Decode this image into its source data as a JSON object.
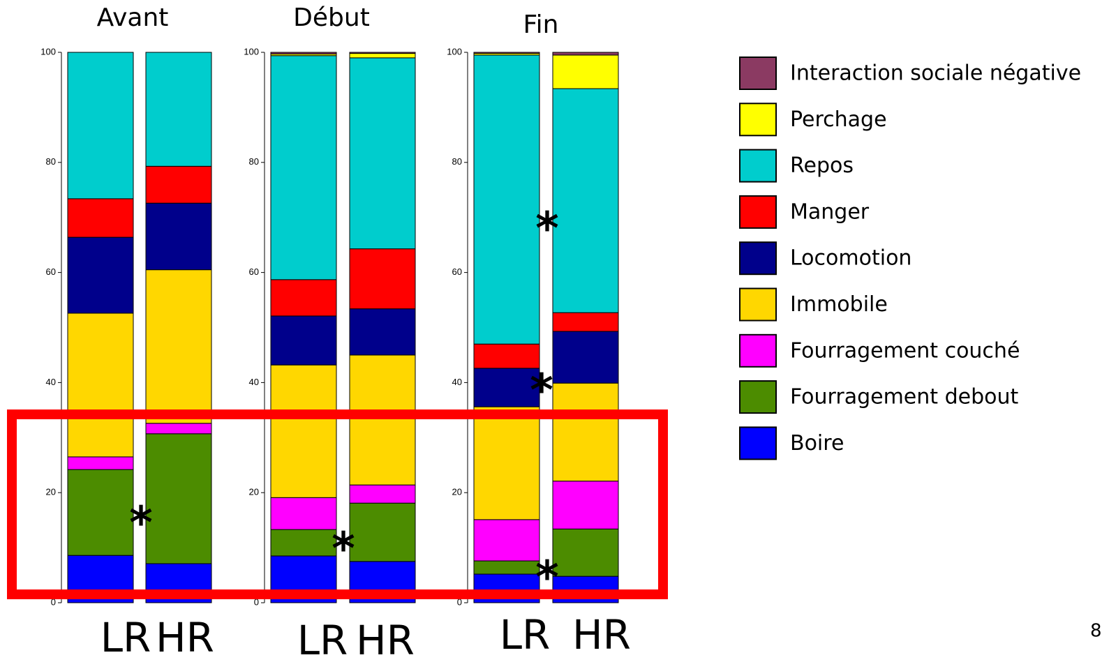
{
  "chart_data": [
    {
      "type": "bar",
      "stacked": true,
      "title": "Avant",
      "categories": [
        "LR",
        "HR"
      ],
      "ylim": [
        0,
        100
      ],
      "yticks": [
        0,
        20,
        40,
        60,
        80,
        100
      ],
      "annotations": [
        "*"
      ],
      "series": [
        {
          "name": "Boire",
          "color": "#0000ff",
          "values": [
            8.6,
            7.1
          ]
        },
        {
          "name": "Fourragement debout",
          "color": "#4c8c00",
          "values": [
            15.6,
            23.6
          ]
        },
        {
          "name": "Fourragement couché",
          "color": "#ff00ff",
          "values": [
            2.3,
            1.9
          ]
        },
        {
          "name": "Immobile",
          "color": "#ffd700",
          "values": [
            26.1,
            27.9
          ]
        },
        {
          "name": "Locomotion",
          "color": "#00008b",
          "values": [
            13.8,
            12.1
          ]
        },
        {
          "name": "Manger",
          "color": "#ff0000",
          "values": [
            7.0,
            6.7
          ]
        },
        {
          "name": "Repos",
          "color": "#00cdcd",
          "values": [
            26.6,
            20.7
          ]
        },
        {
          "name": "Perchage",
          "color": "#ffff00",
          "values": [
            0,
            0
          ]
        },
        {
          "name": "Interaction sociale négative",
          "color": "#8b3a62",
          "values": [
            0,
            0
          ]
        }
      ]
    },
    {
      "type": "bar",
      "stacked": true,
      "title": "Début",
      "categories": [
        "LR",
        "HR"
      ],
      "ylim": [
        0,
        100
      ],
      "yticks": [
        0,
        20,
        40,
        60,
        80,
        100
      ],
      "annotations": [
        "*"
      ],
      "series": [
        {
          "name": "Boire",
          "color": "#0000ff",
          "values": [
            8.5,
            7.5
          ]
        },
        {
          "name": "Fourragement debout",
          "color": "#4c8c00",
          "values": [
            4.8,
            10.6
          ]
        },
        {
          "name": "Fourragement couché",
          "color": "#ff00ff",
          "values": [
            5.8,
            3.3
          ]
        },
        {
          "name": "Immobile",
          "color": "#ffd700",
          "values": [
            24.1,
            23.6
          ]
        },
        {
          "name": "Locomotion",
          "color": "#00008b",
          "values": [
            8.9,
            8.4
          ]
        },
        {
          "name": "Manger",
          "color": "#ff0000",
          "values": [
            6.6,
            10.9
          ]
        },
        {
          "name": "Repos",
          "color": "#00cdcd",
          "values": [
            40.7,
            34.7
          ]
        },
        {
          "name": "Perchage",
          "color": "#ffff00",
          "values": [
            0.3,
            0.8
          ]
        },
        {
          "name": "Interaction sociale négative",
          "color": "#8b3a62",
          "values": [
            0.3,
            0.2
          ]
        }
      ]
    },
    {
      "type": "bar",
      "stacked": true,
      "title": "Fin",
      "categories": [
        "LR",
        "HR"
      ],
      "ylim": [
        0,
        100
      ],
      "yticks": [
        0,
        20,
        40,
        60,
        80,
        100
      ],
      "annotations": [
        "*",
        "*",
        "*"
      ],
      "series": [
        {
          "name": "Boire",
          "color": "#0000ff",
          "values": [
            5.2,
            4.8
          ]
        },
        {
          "name": "Fourragement debout",
          "color": "#4c8c00",
          "values": [
            2.4,
            8.6
          ]
        },
        {
          "name": "Fourragement couché",
          "color": "#ff00ff",
          "values": [
            7.5,
            8.7
          ]
        },
        {
          "name": "Immobile",
          "color": "#ffd700",
          "values": [
            20.5,
            17.8
          ]
        },
        {
          "name": "Locomotion",
          "color": "#00008b",
          "values": [
            7.0,
            9.4
          ]
        },
        {
          "name": "Manger",
          "color": "#ff0000",
          "values": [
            4.4,
            3.4
          ]
        },
        {
          "name": "Repos",
          "color": "#00cdcd",
          "values": [
            52.5,
            40.7
          ]
        },
        {
          "name": "Perchage",
          "color": "#ffff00",
          "values": [
            0.3,
            6.1
          ]
        },
        {
          "name": "Interaction sociale négative",
          "color": "#8b3a62",
          "values": [
            0.2,
            0.5
          ]
        }
      ]
    }
  ],
  "page_number": "8"
}
